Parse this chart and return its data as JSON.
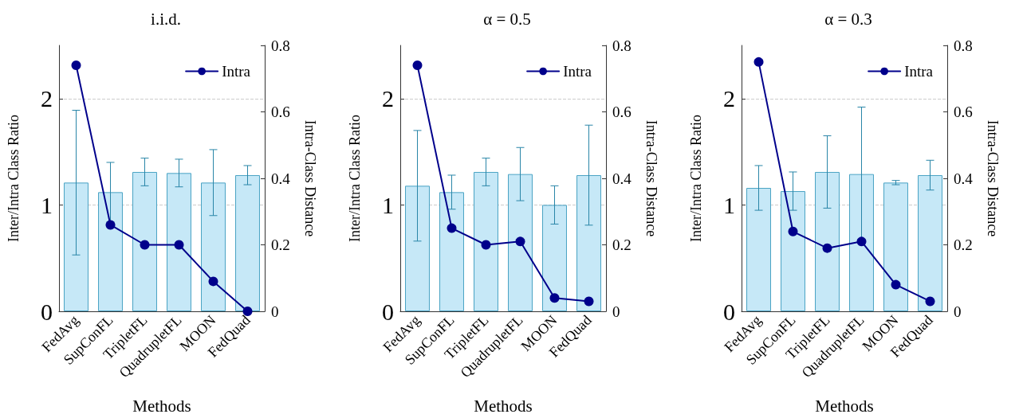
{
  "chart_data": [
    {
      "type": "bar",
      "title": "i.i.d.",
      "xlabel": "Methods",
      "ylabel": "Inter/Intra Class Ratio",
      "y2label": "Intra-Class Distance",
      "categories": [
        "FedAvg",
        "SupConFL",
        "TripletFL",
        "QuadrupletFL",
        "MOON",
        "FedQuad"
      ],
      "series": [
        {
          "color": "#c6e8f7",
          "values": [
            1.21,
            1.12,
            1.31,
            1.3,
            1.21,
            1.28
          ],
          "errors": [
            0.68,
            0.28,
            0.13,
            0.13,
            0.31,
            0.09
          ]
        },
        {
          "type": "line",
          "name": "Intra",
          "color": "#00008b",
          "axis": "y2",
          "marker": "circle",
          "values": [
            0.74,
            0.26,
            0.2,
            0.2,
            0.09,
            0
          ]
        }
      ],
      "ylim": [
        0,
        2.5
      ],
      "yticks": [
        0,
        1,
        2
      ],
      "y2lim": [
        0,
        0.8
      ],
      "y2ticks": [
        0,
        0.2,
        0.4,
        0.6,
        0.8
      ],
      "grid": "y",
      "legend": "top right"
    },
    {
      "type": "bar",
      "title": "α = 0.5",
      "xlabel": "Methods",
      "ylabel": "Inter/Intra Class Ratio",
      "y2label": "Intra-Class Distance",
      "categories": [
        "FedAvg",
        "SupConFL",
        "TripletFL",
        "QuadrupletFL",
        "MOON",
        "FedQuad"
      ],
      "series": [
        {
          "color": "#c6e8f7",
          "values": [
            1.18,
            1.12,
            1.31,
            1.29,
            1.0,
            1.28
          ],
          "errors": [
            0.52,
            0.16,
            0.13,
            0.25,
            0.18,
            0.47
          ]
        },
        {
          "type": "line",
          "name": "Intra",
          "color": "#00008b",
          "axis": "y2",
          "marker": "circle",
          "values": [
            0.74,
            0.25,
            0.2,
            0.21,
            0.04,
            0.03
          ]
        }
      ],
      "ylim": [
        0,
        2.5
      ],
      "yticks": [
        0,
        1,
        2
      ],
      "y2lim": [
        0,
        0.8
      ],
      "y2ticks": [
        0,
        0.2,
        0.4,
        0.6,
        0.8
      ],
      "grid": "y",
      "legend": "top right"
    },
    {
      "type": "bar",
      "title": "α = 0.3",
      "xlabel": "Methods",
      "ylabel": "Inter/Intra Class Ratio",
      "y2label": "Intra-Class Distance",
      "categories": [
        "FedAvg",
        "SupConFL",
        "TripletFL",
        "QuadrupletFL",
        "MOON",
        "FedQuad"
      ],
      "series": [
        {
          "color": "#c6e8f7",
          "values": [
            1.16,
            1.13,
            1.31,
            1.29,
            1.21,
            1.28
          ],
          "errors": [
            0.21,
            0.18,
            0.34,
            0.63,
            0.02,
            0.14
          ]
        },
        {
          "type": "line",
          "name": "Intra",
          "color": "#00008b",
          "axis": "y2",
          "marker": "circle",
          "values": [
            0.75,
            0.24,
            0.19,
            0.21,
            0.08,
            0.03
          ]
        }
      ],
      "ylim": [
        0,
        2.5
      ],
      "yticks": [
        0,
        1,
        2
      ],
      "y2lim": [
        0,
        0.8
      ],
      "y2ticks": [
        0,
        0.2,
        0.4,
        0.6,
        0.8
      ],
      "grid": "y",
      "legend": "top right"
    }
  ]
}
